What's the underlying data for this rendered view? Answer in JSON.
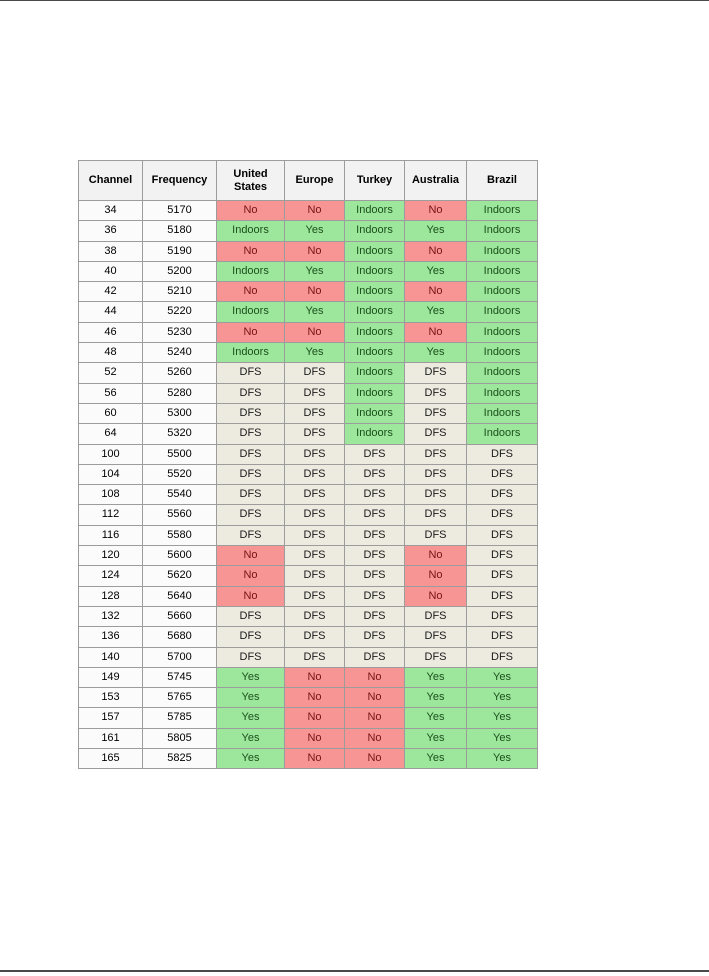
{
  "colors": {
    "border": "#9c9c9c",
    "header-bg": "#f2f2f2",
    "plain-bg": "#fbfbfb",
    "yes-bg": "#9ce79c",
    "yes-text": "#1c4f1c",
    "no-bg": "#f79595",
    "no-text": "#7a1212",
    "dfs-bg": "#edeadf",
    "dfs-text": "#1a1a1a",
    "text": "#000000"
  },
  "table": {
    "columns": [
      "Channel",
      "Frequency",
      "United States",
      "Europe",
      "Turkey",
      "Australia",
      "Brazil"
    ],
    "status_class": {
      "Yes": "yes",
      "Indoors": "yes",
      "No": "no",
      "DFS": "dfs"
    },
    "rows": [
      {
        "channel": "34",
        "frequency": "5170",
        "statuses": [
          "No",
          "No",
          "Indoors",
          "No",
          "Indoors"
        ]
      },
      {
        "channel": "36",
        "frequency": "5180",
        "statuses": [
          "Indoors",
          "Yes",
          "Indoors",
          "Yes",
          "Indoors"
        ]
      },
      {
        "channel": "38",
        "frequency": "5190",
        "statuses": [
          "No",
          "No",
          "Indoors",
          "No",
          "Indoors"
        ]
      },
      {
        "channel": "40",
        "frequency": "5200",
        "statuses": [
          "Indoors",
          "Yes",
          "Indoors",
          "Yes",
          "Indoors"
        ]
      },
      {
        "channel": "42",
        "frequency": "5210",
        "statuses": [
          "No",
          "No",
          "Indoors",
          "No",
          "Indoors"
        ]
      },
      {
        "channel": "44",
        "frequency": "5220",
        "statuses": [
          "Indoors",
          "Yes",
          "Indoors",
          "Yes",
          "Indoors"
        ]
      },
      {
        "channel": "46",
        "frequency": "5230",
        "statuses": [
          "No",
          "No",
          "Indoors",
          "No",
          "Indoors"
        ]
      },
      {
        "channel": "48",
        "frequency": "5240",
        "statuses": [
          "Indoors",
          "Yes",
          "Indoors",
          "Yes",
          "Indoors"
        ]
      },
      {
        "channel": "52",
        "frequency": "5260",
        "statuses": [
          "DFS",
          "DFS",
          "Indoors",
          "DFS",
          "Indoors"
        ]
      },
      {
        "channel": "56",
        "frequency": "5280",
        "statuses": [
          "DFS",
          "DFS",
          "Indoors",
          "DFS",
          "Indoors"
        ]
      },
      {
        "channel": "60",
        "frequency": "5300",
        "statuses": [
          "DFS",
          "DFS",
          "Indoors",
          "DFS",
          "Indoors"
        ]
      },
      {
        "channel": "64",
        "frequency": "5320",
        "statuses": [
          "DFS",
          "DFS",
          "Indoors",
          "DFS",
          "Indoors"
        ]
      },
      {
        "channel": "100",
        "frequency": "5500",
        "statuses": [
          "DFS",
          "DFS",
          "DFS",
          "DFS",
          "DFS"
        ]
      },
      {
        "channel": "104",
        "frequency": "5520",
        "statuses": [
          "DFS",
          "DFS",
          "DFS",
          "DFS",
          "DFS"
        ]
      },
      {
        "channel": "108",
        "frequency": "5540",
        "statuses": [
          "DFS",
          "DFS",
          "DFS",
          "DFS",
          "DFS"
        ]
      },
      {
        "channel": "112",
        "frequency": "5560",
        "statuses": [
          "DFS",
          "DFS",
          "DFS",
          "DFS",
          "DFS"
        ]
      },
      {
        "channel": "116",
        "frequency": "5580",
        "statuses": [
          "DFS",
          "DFS",
          "DFS",
          "DFS",
          "DFS"
        ]
      },
      {
        "channel": "120",
        "frequency": "5600",
        "statuses": [
          "No",
          "DFS",
          "DFS",
          "No",
          "DFS"
        ]
      },
      {
        "channel": "124",
        "frequency": "5620",
        "statuses": [
          "No",
          "DFS",
          "DFS",
          "No",
          "DFS"
        ]
      },
      {
        "channel": "128",
        "frequency": "5640",
        "statuses": [
          "No",
          "DFS",
          "DFS",
          "No",
          "DFS"
        ]
      },
      {
        "channel": "132",
        "frequency": "5660",
        "statuses": [
          "DFS",
          "DFS",
          "DFS",
          "DFS",
          "DFS"
        ]
      },
      {
        "channel": "136",
        "frequency": "5680",
        "statuses": [
          "DFS",
          "DFS",
          "DFS",
          "DFS",
          "DFS"
        ]
      },
      {
        "channel": "140",
        "frequency": "5700",
        "statuses": [
          "DFS",
          "DFS",
          "DFS",
          "DFS",
          "DFS"
        ]
      },
      {
        "channel": "149",
        "frequency": "5745",
        "statuses": [
          "Yes",
          "No",
          "No",
          "Yes",
          "Yes"
        ]
      },
      {
        "channel": "153",
        "frequency": "5765",
        "statuses": [
          "Yes",
          "No",
          "No",
          "Yes",
          "Yes"
        ]
      },
      {
        "channel": "157",
        "frequency": "5785",
        "statuses": [
          "Yes",
          "No",
          "No",
          "Yes",
          "Yes"
        ]
      },
      {
        "channel": "161",
        "frequency": "5805",
        "statuses": [
          "Yes",
          "No",
          "No",
          "Yes",
          "Yes"
        ]
      },
      {
        "channel": "165",
        "frequency": "5825",
        "statuses": [
          "Yes",
          "No",
          "No",
          "Yes",
          "Yes"
        ]
      }
    ]
  }
}
